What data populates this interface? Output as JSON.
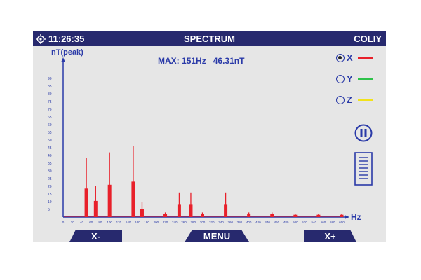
{
  "header": {
    "time": "11:26:35",
    "title": "SPECTRUM",
    "device": "COLIY",
    "gps_icon": "gps-target-icon"
  },
  "readout": {
    "max_label": "MAX:",
    "max_freq": "151Hz",
    "max_value": "46.31nT"
  },
  "legend": [
    {
      "label": "X",
      "selected": true,
      "color": "#e8202a"
    },
    {
      "label": "Y",
      "selected": false,
      "color": "#2ec24a"
    },
    {
      "label": "Z",
      "selected": false,
      "color": "#f2e21a"
    }
  ],
  "controls": {
    "pause_icon": "pause-icon",
    "list_icon": "list-icon"
  },
  "nav": {
    "left": "X-",
    "middle": "MENU",
    "right": "X+"
  },
  "chart_data": {
    "type": "bar",
    "ylabel": "nT(peak)",
    "xlabel": "Hz",
    "xlim": [
      0,
      600
    ],
    "ylim": [
      0,
      100
    ],
    "yticks": [
      5,
      10,
      15,
      20,
      25,
      30,
      35,
      40,
      45,
      50,
      55,
      60,
      65,
      70,
      75,
      80,
      85,
      90
    ],
    "xticks": [
      0,
      20,
      40,
      60,
      80,
      100,
      120,
      140,
      160,
      180,
      200,
      220,
      240,
      260,
      280,
      300,
      320,
      340,
      360,
      380,
      400,
      420,
      440,
      460,
      480,
      500,
      520,
      540,
      560,
      580,
      600
    ],
    "series": [
      {
        "name": "X",
        "color": "#e8202a",
        "peaks": [
          {
            "x": 50,
            "value": 38.5,
            "bar": 18.5
          },
          {
            "x": 70,
            "value": 20,
            "bar": 10.5
          },
          {
            "x": 100,
            "value": 42,
            "bar": 21
          },
          {
            "x": 151,
            "value": 46.31,
            "bar": 23
          },
          {
            "x": 170,
            "value": 10,
            "bar": 5
          },
          {
            "x": 220,
            "value": 3,
            "bar": 2
          },
          {
            "x": 250,
            "value": 16,
            "bar": 8
          },
          {
            "x": 275,
            "value": 16,
            "bar": 8
          },
          {
            "x": 300,
            "value": 3,
            "bar": 2
          },
          {
            "x": 350,
            "value": 16,
            "bar": 8
          },
          {
            "x": 400,
            "value": 3,
            "bar": 2
          },
          {
            "x": 450,
            "value": 3,
            "bar": 2
          },
          {
            "x": 500,
            "value": 2,
            "bar": 1.5
          },
          {
            "x": 550,
            "value": 2,
            "bar": 1.5
          },
          {
            "x": 600,
            "value": 2,
            "bar": 1.5
          }
        ]
      }
    ]
  }
}
